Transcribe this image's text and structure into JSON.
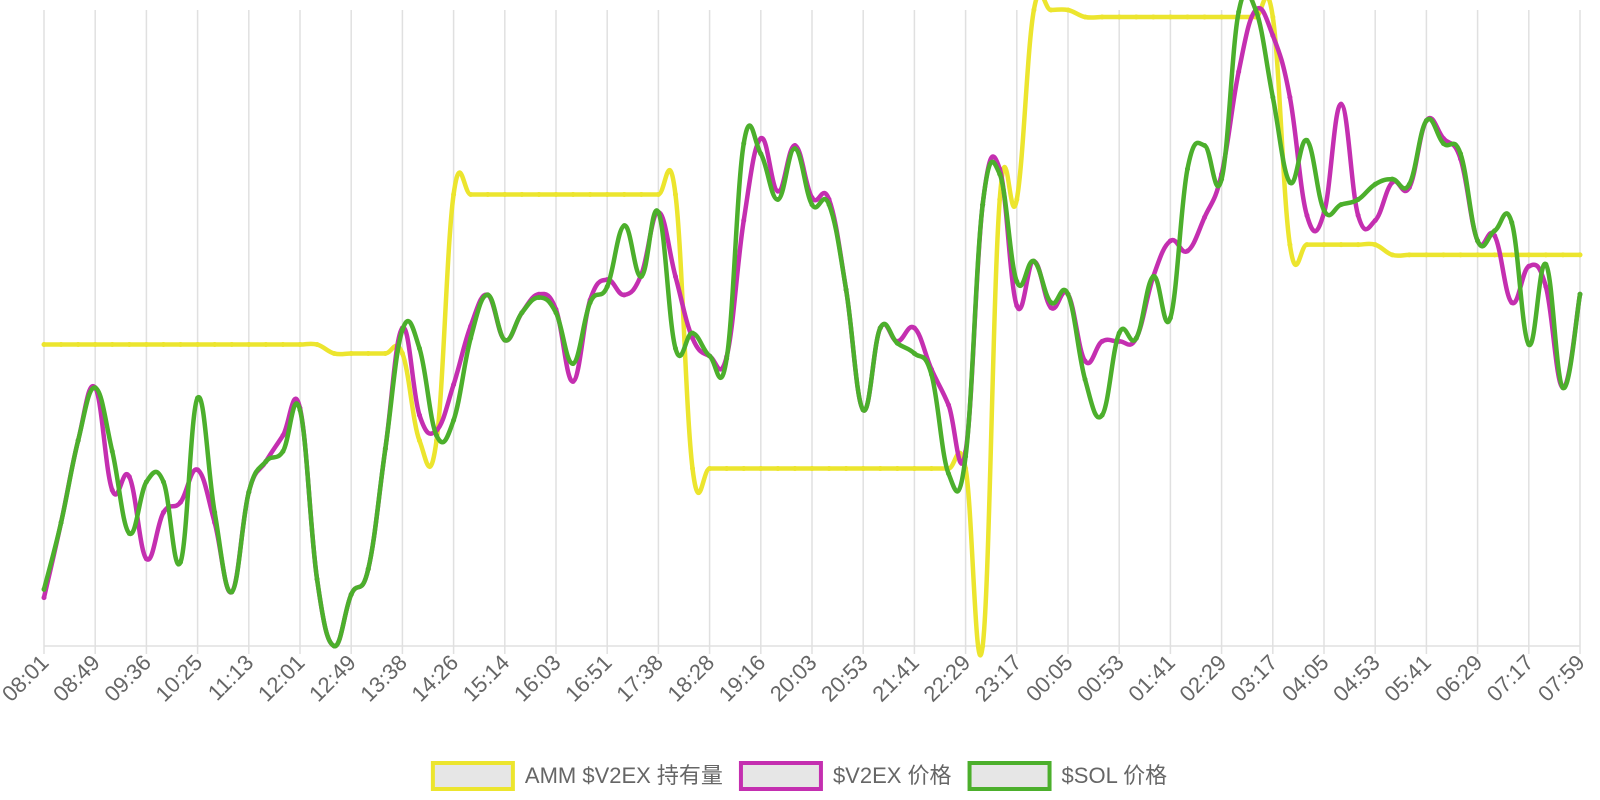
{
  "chart_data": {
    "type": "line",
    "categories": [
      "08:01",
      null,
      null,
      "08:49",
      null,
      null,
      "09:36",
      null,
      null,
      "10:25",
      null,
      null,
      "11:13",
      null,
      null,
      "12:01",
      null,
      null,
      "12:49",
      null,
      null,
      "13:38",
      null,
      null,
      "14:26",
      null,
      null,
      "15:14",
      null,
      null,
      "16:03",
      null,
      null,
      "16:51",
      null,
      null,
      "17:38",
      null,
      null,
      "18:28",
      null,
      null,
      "19:16",
      null,
      null,
      "20:03",
      null,
      null,
      "20:53",
      null,
      null,
      "21:41",
      null,
      null,
      "22:29",
      null,
      null,
      "23:17",
      null,
      null,
      "00:05",
      null,
      null,
      "00:53",
      null,
      null,
      "01:41",
      null,
      null,
      "02:29",
      null,
      null,
      "03:17",
      null,
      null,
      "04:05",
      null,
      null,
      "04:53",
      null,
      null,
      "05:41",
      null,
      null,
      "06:29",
      null,
      null,
      "07:17",
      null,
      null,
      "07:59"
    ],
    "series": [
      {
        "name": "AMM $V2EX 持有量",
        "color": "#ece52e",
        "values": [
          47.4,
          47.4,
          47.4,
          47.4,
          47.4,
          47.4,
          47.4,
          47.4,
          47.4,
          47.4,
          47.4,
          47.4,
          47.4,
          47.4,
          47.4,
          47.4,
          47.4,
          46.0,
          46.0,
          46.0,
          46.0,
          46.0,
          32.3,
          32.3,
          71.0,
          71.0,
          71.0,
          71.0,
          71.0,
          71.0,
          71.0,
          71.0,
          71.0,
          71.0,
          71.0,
          71.0,
          71.0,
          71.0,
          27.9,
          27.9,
          27.9,
          27.9,
          27.9,
          27.9,
          27.9,
          27.9,
          27.9,
          27.9,
          27.9,
          27.9,
          27.9,
          27.9,
          27.9,
          27.9,
          27.9,
          0,
          70.2,
          70.2,
          100,
          100,
          100,
          98.9,
          98.9,
          98.9,
          98.9,
          98.9,
          98.9,
          98.9,
          98.9,
          98.9,
          98.9,
          98.9,
          98.9,
          63.1,
          63.1,
          63.1,
          63.1,
          63.1,
          63.1,
          61.5,
          61.5,
          61.5,
          61.5,
          61.5,
          61.5,
          61.5,
          61.5,
          61.5,
          61.5,
          61.5,
          61.5
        ]
      },
      {
        "name": "$V2EX 价格",
        "color": "#c42fb0",
        "values": [
          7.6,
          19.4,
          32.3,
          40.6,
          24.5,
          26.6,
          13.7,
          21.0,
          22.6,
          27.7,
          19.4,
          8.5,
          24.2,
          29.0,
          33.1,
          37.4,
          10.5,
          0,
          8.1,
          12.1,
          31.0,
          50.0,
          36.3,
          33.9,
          41.1,
          50.3,
          55.2,
          48.1,
          52.4,
          55.3,
          52.9,
          41.6,
          54.4,
          57.6,
          55.2,
          58.4,
          68.2,
          58.1,
          48.4,
          45.6,
          45.5,
          66.9,
          79.8,
          71.5,
          78.7,
          70.5,
          70.2,
          56.0,
          37.1,
          50.0,
          47.9,
          50.0,
          43.5,
          37.9,
          30.6,
          69.4,
          75.0,
          53.5,
          60.5,
          53.2,
          55.3,
          44.8,
          47.9,
          47.9,
          48.4,
          58.1,
          63.7,
          62.1,
          67.4,
          74.2,
          90.3,
          100,
          96.0,
          86.3,
          67.7,
          68.1,
          85.2,
          67.7,
          66.9,
          72.9,
          72.1,
          82.6,
          79.8,
          76.6,
          63.7,
          64.5,
          54.0,
          59.7,
          56.5,
          40.6,
          55.3
        ]
      },
      {
        "name": "$SOL 价格",
        "color": "#4caf2c",
        "values": [
          8.9,
          19.4,
          32.3,
          40.6,
          30.6,
          17.7,
          25.8,
          25.8,
          13.2,
          39.0,
          21.0,
          8.5,
          24.2,
          29.0,
          30.6,
          37.1,
          10.5,
          0,
          8.1,
          12.1,
          31.0,
          49.7,
          46.8,
          33.1,
          35.5,
          48.4,
          55.2,
          48.1,
          52.4,
          54.8,
          52.4,
          44.4,
          54.0,
          56.5,
          66.1,
          58.1,
          68.2,
          46.8,
          49.2,
          45.6,
          45.2,
          79.0,
          77.4,
          70.2,
          78.2,
          69.4,
          69.4,
          56.0,
          37.1,
          50.0,
          47.6,
          46.0,
          42.7,
          27.1,
          29.8,
          69.4,
          74.2,
          57.3,
          60.5,
          54.0,
          55.3,
          41.9,
          36.3,
          49.2,
          48.4,
          58.1,
          51.6,
          75.0,
          78.7,
          73.4,
          99.7,
          100,
          86.3,
          72.9,
          79.5,
          68.5,
          69.4,
          70.2,
          72.6,
          73.4,
          72.6,
          82.6,
          79.0,
          77.4,
          63.7,
          65.3,
          66.6,
          47.4,
          60.0,
          40.6,
          55.3
        ]
      }
    ],
    "ylim": [
      0,
      100
    ],
    "grid": true,
    "legend": "bottom"
  }
}
